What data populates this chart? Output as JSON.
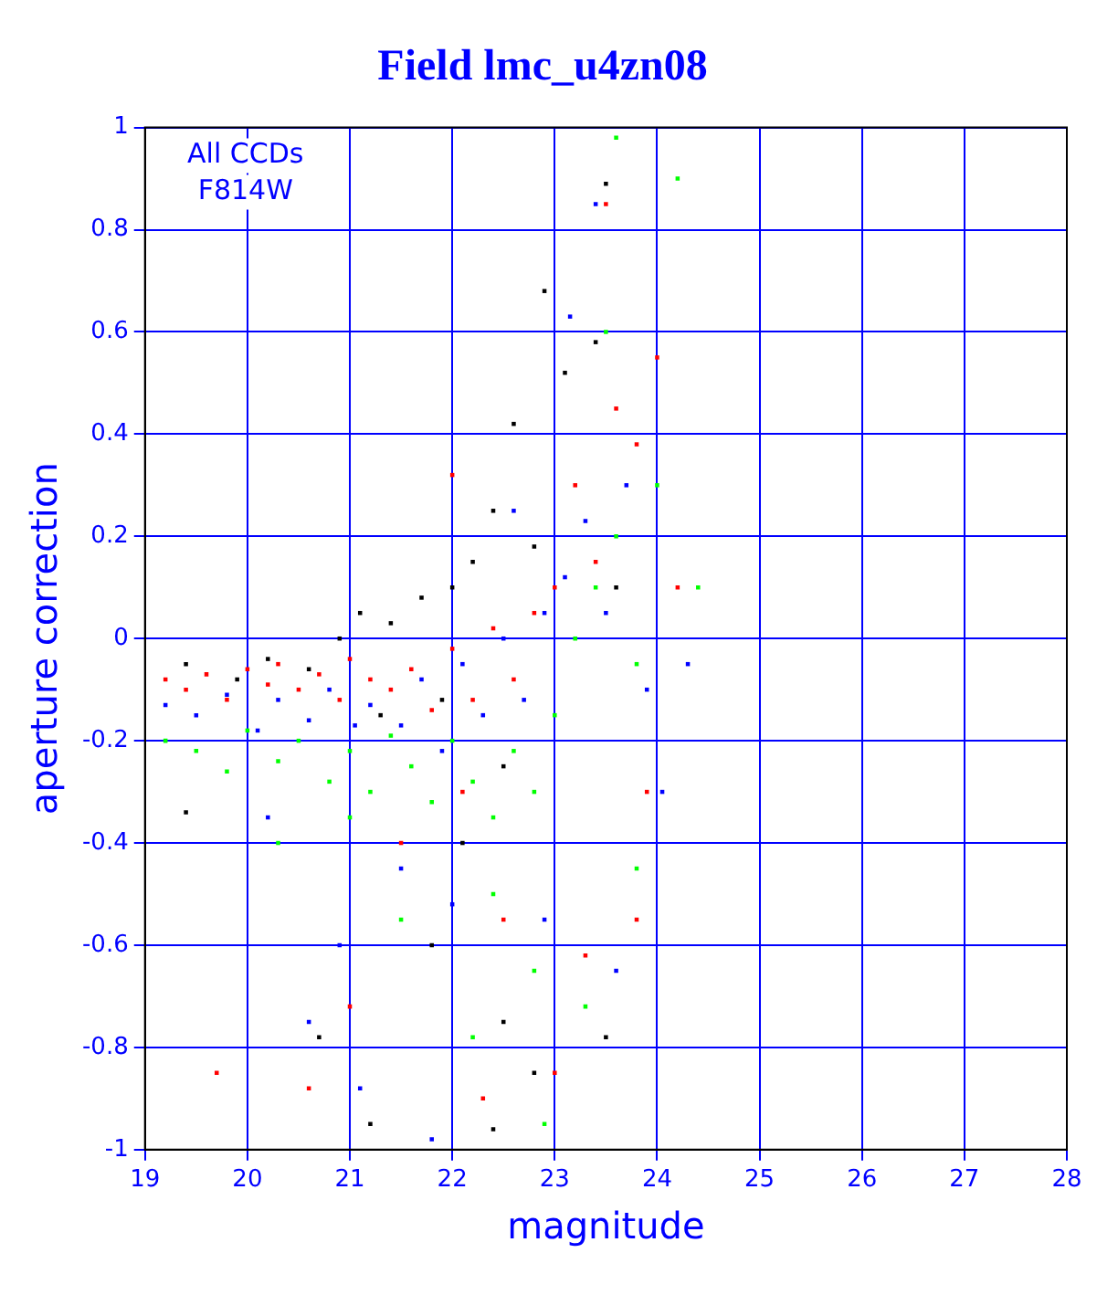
{
  "chart_data": {
    "type": "scatter",
    "title": "Field lmc_u4zn08",
    "xlabel": "magnitude",
    "ylabel": "aperture correction",
    "annotations": [
      "All CCDs",
      "F814W"
    ],
    "xlim": [
      19,
      28
    ],
    "xticks": [
      19,
      20,
      21,
      22,
      23,
      24,
      25,
      26,
      27,
      28
    ],
    "ylim": [
      -1,
      1
    ],
    "yticks": [
      -1,
      -0.8,
      -0.6,
      -0.4,
      -0.2,
      0,
      0.2,
      0.4,
      0.6,
      0.8,
      1
    ],
    "grid": true,
    "marker": "square",
    "legend": false,
    "series": [
      {
        "color": "#000000",
        "x": [
          19.4,
          19.9,
          20.2,
          20.6,
          20.9,
          21.1,
          21.4,
          21.7,
          22.0,
          22.2,
          22.4,
          22.6,
          22.9,
          23.1,
          23.5,
          23.4,
          22.8,
          21.9,
          21.3,
          22.5,
          19.4,
          21.8,
          22.5,
          22.8,
          23.5,
          22.4,
          21.2,
          20.7,
          22.1,
          23.6
        ],
        "values": [
          -0.05,
          -0.08,
          -0.04,
          -0.06,
          0.0,
          0.05,
          0.03,
          0.08,
          0.1,
          0.15,
          0.25,
          0.42,
          0.68,
          0.52,
          0.89,
          0.58,
          0.18,
          -0.12,
          -0.15,
          -0.25,
          -0.34,
          -0.6,
          -0.75,
          -0.85,
          -0.78,
          -0.96,
          -0.95,
          -0.78,
          -0.4,
          0.1
        ]
      },
      {
        "color": "#ff0000",
        "x": [
          19.2,
          19.4,
          19.6,
          19.8,
          20.0,
          20.2,
          20.3,
          20.5,
          20.7,
          20.9,
          21.0,
          21.2,
          21.4,
          21.6,
          21.8,
          22.0,
          22.2,
          22.4,
          22.6,
          22.8,
          23.0,
          23.2,
          23.4,
          23.6,
          23.8,
          24.0,
          23.5,
          24.2,
          22.1,
          21.5,
          22.5,
          21.0,
          22.3,
          23.3,
          19.7,
          23.9,
          22.0,
          20.6,
          23.0,
          23.8
        ],
        "values": [
          -0.08,
          -0.1,
          -0.07,
          -0.12,
          -0.06,
          -0.09,
          -0.05,
          -0.1,
          -0.07,
          -0.12,
          -0.04,
          -0.08,
          -0.1,
          -0.06,
          -0.14,
          -0.02,
          -0.12,
          0.02,
          -0.08,
          0.05,
          0.1,
          0.3,
          0.15,
          0.45,
          0.38,
          0.55,
          0.85,
          0.1,
          -0.3,
          -0.4,
          -0.55,
          -0.72,
          -0.9,
          -0.62,
          -0.85,
          -0.3,
          0.32,
          -0.88,
          -0.85,
          -0.55
        ]
      },
      {
        "color": "#0000ff",
        "x": [
          19.2,
          19.5,
          19.8,
          20.1,
          20.3,
          20.6,
          20.8,
          21.05,
          21.2,
          21.5,
          21.7,
          21.9,
          22.1,
          22.3,
          22.5,
          22.7,
          22.9,
          23.1,
          23.3,
          23.5,
          23.7,
          23.15,
          23.4,
          22.6,
          20.2,
          21.5,
          22.0,
          20.6,
          21.1,
          21.8,
          22.9,
          23.6,
          24.05,
          24.3,
          23.9,
          20.9
        ],
        "values": [
          -0.13,
          -0.15,
          -0.11,
          -0.18,
          -0.12,
          -0.16,
          -0.1,
          -0.17,
          -0.13,
          -0.17,
          -0.08,
          -0.22,
          -0.05,
          -0.15,
          0.0,
          -0.12,
          0.05,
          0.12,
          0.23,
          0.05,
          0.3,
          0.63,
          0.85,
          0.25,
          -0.35,
          -0.45,
          -0.52,
          -0.75,
          -0.88,
          -0.98,
          -0.55,
          -0.65,
          -0.3,
          -0.05,
          -0.1,
          -0.6
        ]
      },
      {
        "color": "#00ff00",
        "x": [
          19.2,
          19.5,
          19.8,
          20.0,
          20.3,
          20.5,
          20.8,
          21.0,
          21.2,
          21.4,
          21.6,
          21.8,
          22.0,
          22.2,
          22.4,
          22.6,
          22.8,
          23.0,
          23.2,
          23.4,
          23.6,
          23.8,
          24.0,
          24.2,
          23.6,
          23.5,
          22.4,
          21.5,
          22.8,
          22.2,
          23.3,
          22.9,
          20.3,
          24.4,
          23.8,
          21.0
        ],
        "values": [
          -0.2,
          -0.22,
          -0.26,
          -0.18,
          -0.24,
          -0.2,
          -0.28,
          -0.22,
          -0.3,
          -0.19,
          -0.25,
          -0.32,
          -0.2,
          -0.28,
          -0.35,
          -0.22,
          -0.3,
          -0.15,
          0.0,
          0.1,
          0.2,
          -0.05,
          0.3,
          0.9,
          0.98,
          0.6,
          -0.5,
          -0.55,
          -0.65,
          -0.78,
          -0.72,
          -0.95,
          -0.4,
          0.1,
          -0.45,
          -0.35
        ]
      }
    ]
  }
}
